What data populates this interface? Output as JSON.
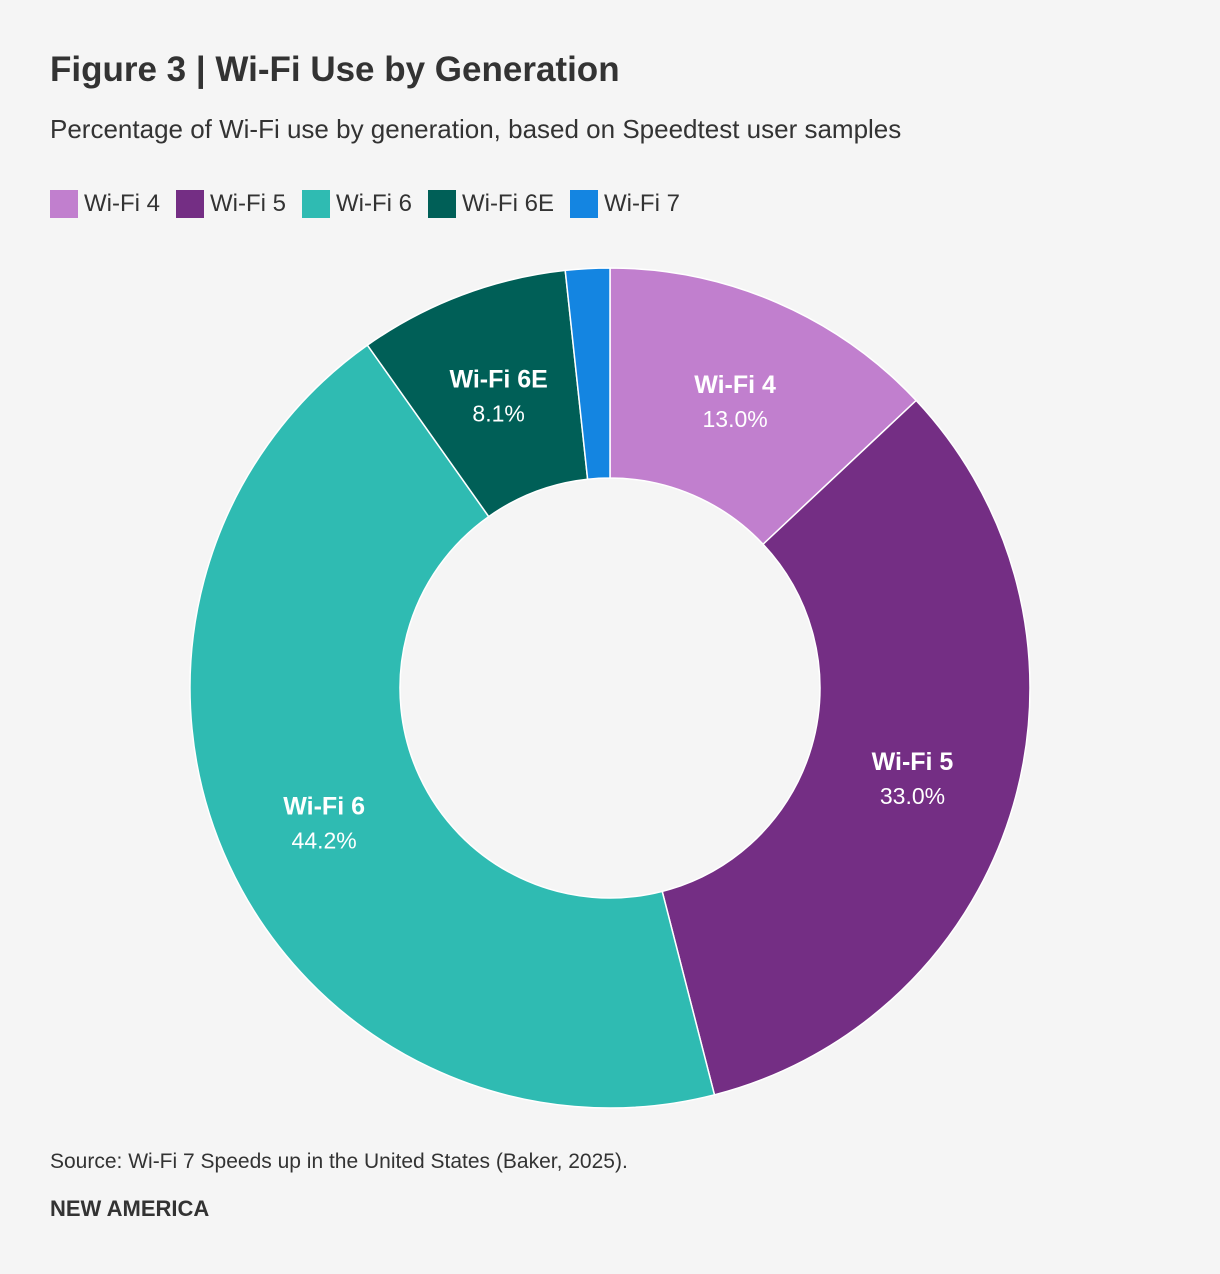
{
  "header": {
    "title": "Figure 3 | Wi-Fi Use by Generation",
    "subtitle": "Percentage of Wi-Fi use by generation, based on Speedtest user samples"
  },
  "footer": {
    "source": "Source: Wi-Fi 7 Speeds up in the United States (Baker, 2025).",
    "brand": "NEW AMERICA"
  },
  "chart_data": {
    "type": "pie",
    "donut": true,
    "title": "Figure 3 | Wi-Fi Use by Generation",
    "subtitle": "Percentage of Wi-Fi use by generation, based on Speedtest user samples",
    "legend_position": "top-left",
    "categories": [
      "Wi-Fi 4",
      "Wi-Fi 5",
      "Wi-Fi 6",
      "Wi-Fi 6E",
      "Wi-Fi 7"
    ],
    "values": [
      13.0,
      33.0,
      44.2,
      8.1,
      1.7
    ],
    "value_labels": [
      "13.0%",
      "33.0%",
      "44.2%",
      "8.1%",
      ""
    ],
    "colors": [
      "#c17fce",
      "#742e84",
      "#2fbbb2",
      "#005f57",
      "#1485e1"
    ],
    "label_shown": [
      true,
      true,
      true,
      true,
      false
    ]
  }
}
